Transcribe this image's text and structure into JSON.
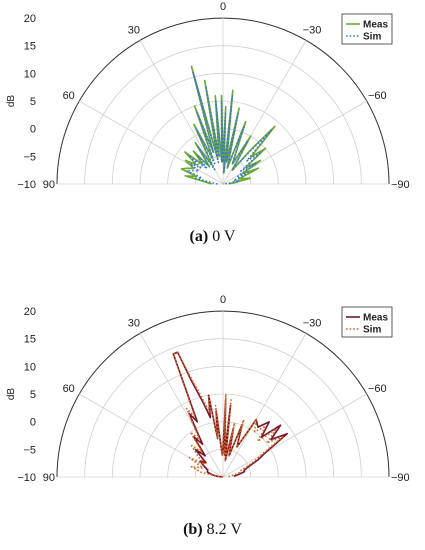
{
  "chart_data": [
    {
      "type": "polar",
      "panel": "a",
      "caption_letter": "(a)",
      "caption_text": " 0 V",
      "rlabel": "dB",
      "rlim": [
        -10,
        20
      ],
      "rticks": [
        20,
        15,
        10,
        5,
        0,
        -5,
        -10
      ],
      "angle_ticks": [
        {
          "angle": 0,
          "label": "0"
        },
        {
          "angle": -30,
          "label": "−30"
        },
        {
          "angle": -60,
          "label": "−60"
        },
        {
          "angle": -90,
          "label": "−90"
        },
        {
          "angle": 30,
          "label": "30"
        },
        {
          "angle": 60,
          "label": "60"
        },
        {
          "angle": 90,
          "label": "90"
        }
      ],
      "legend_position": "top-right",
      "series": [
        {
          "name": "Meas",
          "color": "#6aaa32",
          "dash": "solid",
          "points": [
            [
              90,
              -8
            ],
            [
              84,
              -7
            ],
            [
              78,
              -3
            ],
            [
              74,
              -5
            ],
            [
              70,
              -2
            ],
            [
              66,
              -3
            ],
            [
              62,
              -4
            ],
            [
              58,
              -2
            ],
            [
              54,
              -4
            ],
            [
              50,
              -1
            ],
            [
              46,
              -5
            ],
            [
              42,
              -2
            ],
            [
              38,
              -6
            ],
            [
              34,
              -1
            ],
            [
              30,
              -6
            ],
            [
              26,
              2
            ],
            [
              22,
              -5
            ],
            [
              20,
              5
            ],
            [
              17,
              -4
            ],
            [
              15,
              12
            ],
            [
              12,
              -5
            ],
            [
              10,
              9
            ],
            [
              8,
              -5
            ],
            [
              5,
              6
            ],
            [
              3,
              -6
            ],
            [
              1,
              6
            ],
            [
              0,
              -6
            ],
            [
              -2,
              4
            ],
            [
              -4,
              -8
            ],
            [
              -6,
              7
            ],
            [
              -9,
              -6
            ],
            [
              -12,
              4
            ],
            [
              -15,
              -7
            ],
            [
              -20,
              2
            ],
            [
              -25,
              -6
            ],
            [
              -30,
              0
            ],
            [
              -34,
              -7
            ],
            [
              -39,
              -2
            ],
            [
              -42,
              4
            ],
            [
              -46,
              -3
            ],
            [
              -50,
              0
            ],
            [
              -54,
              -5
            ],
            [
              -58,
              -2
            ],
            [
              -62,
              -6
            ],
            [
              -66,
              -3
            ],
            [
              -72,
              -7
            ],
            [
              -78,
              -5
            ],
            [
              -84,
              -8
            ],
            [
              -88,
              -9
            ]
          ]
        },
        {
          "name": "Sim",
          "color": "#3b78c8",
          "dash": "dotted",
          "points": [
            [
              90,
              -9
            ],
            [
              84,
              -8
            ],
            [
              78,
              -5
            ],
            [
              74,
              -6
            ],
            [
              70,
              -3
            ],
            [
              66,
              -4
            ],
            [
              62,
              -5
            ],
            [
              58,
              -3
            ],
            [
              54,
              -5
            ],
            [
              50,
              -2
            ],
            [
              46,
              -6
            ],
            [
              42,
              -3
            ],
            [
              38,
              -6
            ],
            [
              34,
              -2
            ],
            [
              30,
              -7
            ],
            [
              26,
              1
            ],
            [
              22,
              -6
            ],
            [
              20,
              4
            ],
            [
              17,
              -4
            ],
            [
              15,
              11
            ],
            [
              12,
              -6
            ],
            [
              10,
              8
            ],
            [
              8,
              -5
            ],
            [
              5,
              5
            ],
            [
              3,
              -6
            ],
            [
              1,
              5
            ],
            [
              0,
              -6
            ],
            [
              -2,
              3
            ],
            [
              -4,
              -8
            ],
            [
              -6,
              6
            ],
            [
              -9,
              -6
            ],
            [
              -12,
              3
            ],
            [
              -15,
              -7
            ],
            [
              -20,
              1
            ],
            [
              -25,
              -6
            ],
            [
              -30,
              -1
            ],
            [
              -34,
              -7
            ],
            [
              -39,
              -3
            ],
            [
              -42,
              3
            ],
            [
              -46,
              -4
            ],
            [
              -50,
              -1
            ],
            [
              -54,
              -6
            ],
            [
              -58,
              -3
            ],
            [
              -62,
              -7
            ],
            [
              -66,
              -5
            ],
            [
              -72,
              -8
            ],
            [
              -78,
              -7
            ],
            [
              -84,
              -9
            ],
            [
              -88,
              -10
            ]
          ]
        }
      ]
    },
    {
      "type": "polar",
      "panel": "b",
      "caption_letter": "(b)",
      "caption_text": " 8.2 V",
      "rlabel": "dB",
      "rlim": [
        -10,
        20
      ],
      "rticks": [
        20,
        15,
        10,
        5,
        0,
        -5,
        -10
      ],
      "angle_ticks": [
        {
          "angle": 0,
          "label": "0"
        },
        {
          "angle": -30,
          "label": "−30"
        },
        {
          "angle": -60,
          "label": "−60"
        },
        {
          "angle": -90,
          "label": "−90"
        },
        {
          "angle": 30,
          "label": "30"
        },
        {
          "angle": 60,
          "label": "60"
        },
        {
          "angle": 90,
          "label": "90"
        }
      ],
      "legend_position": "top-right",
      "series": [
        {
          "name": "Meas",
          "color": "#7a1530",
          "dash": "solid",
          "points": [
            [
              90,
              -10
            ],
            [
              84,
              -9
            ],
            [
              78,
              -8
            ],
            [
              72,
              -7
            ],
            [
              66,
              -7
            ],
            [
              60,
              -6
            ],
            [
              55,
              -5
            ],
            [
              50,
              -6
            ],
            [
              45,
              -3
            ],
            [
              40,
              -5
            ],
            [
              36,
              -1
            ],
            [
              32,
              -3
            ],
            [
              28,
              3
            ],
            [
              25,
              1
            ],
            [
              22,
              14
            ],
            [
              20,
              14
            ],
            [
              18,
              8
            ],
            [
              15,
              4
            ],
            [
              12,
              1
            ],
            [
              10,
              5
            ],
            [
              8,
              -3
            ],
            [
              6,
              2
            ],
            [
              4,
              -4
            ],
            [
              2,
              -6
            ],
            [
              0,
              -5
            ],
            [
              -2,
              4
            ],
            [
              -4,
              -6
            ],
            [
              -6,
              3
            ],
            [
              -8,
              -7
            ],
            [
              -12,
              -1
            ],
            [
              -16,
              -6
            ],
            [
              -20,
              0
            ],
            [
              -25,
              -4
            ],
            [
              -30,
              2
            ],
            [
              -35,
              1
            ],
            [
              -40,
              3
            ],
            [
              -44,
              0
            ],
            [
              -48,
              4
            ],
            [
              -52,
              1
            ],
            [
              -56,
              4
            ],
            [
              -60,
              -1
            ],
            [
              -64,
              -3
            ],
            [
              -68,
              -5
            ],
            [
              -72,
              -6
            ],
            [
              -76,
              -6
            ],
            [
              -80,
              -7
            ],
            [
              -86,
              -8
            ]
          ]
        },
        {
          "name": "Sim",
          "color": "#d2691e",
          "dash": "dotted",
          "points": [
            [
              90,
              -10
            ],
            [
              84,
              -9
            ],
            [
              78,
              -6
            ],
            [
              72,
              -4
            ],
            [
              66,
              -6
            ],
            [
              60,
              -3
            ],
            [
              55,
              -6
            ],
            [
              50,
              -4
            ],
            [
              45,
              -2
            ],
            [
              40,
              -4
            ],
            [
              36,
              0
            ],
            [
              32,
              -2
            ],
            [
              28,
              4
            ],
            [
              25,
              2
            ],
            [
              22,
              14
            ],
            [
              20,
              14
            ],
            [
              18,
              9
            ],
            [
              15,
              5
            ],
            [
              12,
              2
            ],
            [
              10,
              5
            ],
            [
              8,
              -3
            ],
            [
              6,
              3
            ],
            [
              4,
              -4
            ],
            [
              2,
              -6
            ],
            [
              0,
              -4
            ],
            [
              -2,
              5
            ],
            [
              -4,
              -6
            ],
            [
              -6,
              4
            ],
            [
              -8,
              -7
            ],
            [
              -12,
              0
            ],
            [
              -16,
              -6
            ],
            [
              -20,
              1
            ],
            [
              -25,
              -4
            ],
            [
              -30,
              2
            ],
            [
              -35,
              0
            ],
            [
              -40,
              2
            ],
            [
              -44,
              -1
            ],
            [
              -48,
              3
            ],
            [
              -52,
              0
            ],
            [
              -56,
              3
            ],
            [
              -60,
              -2
            ],
            [
              -64,
              -4
            ],
            [
              -68,
              -6
            ],
            [
              -72,
              -7
            ],
            [
              -76,
              -7
            ],
            [
              -80,
              -8
            ],
            [
              -86,
              -9
            ]
          ]
        }
      ]
    }
  ]
}
